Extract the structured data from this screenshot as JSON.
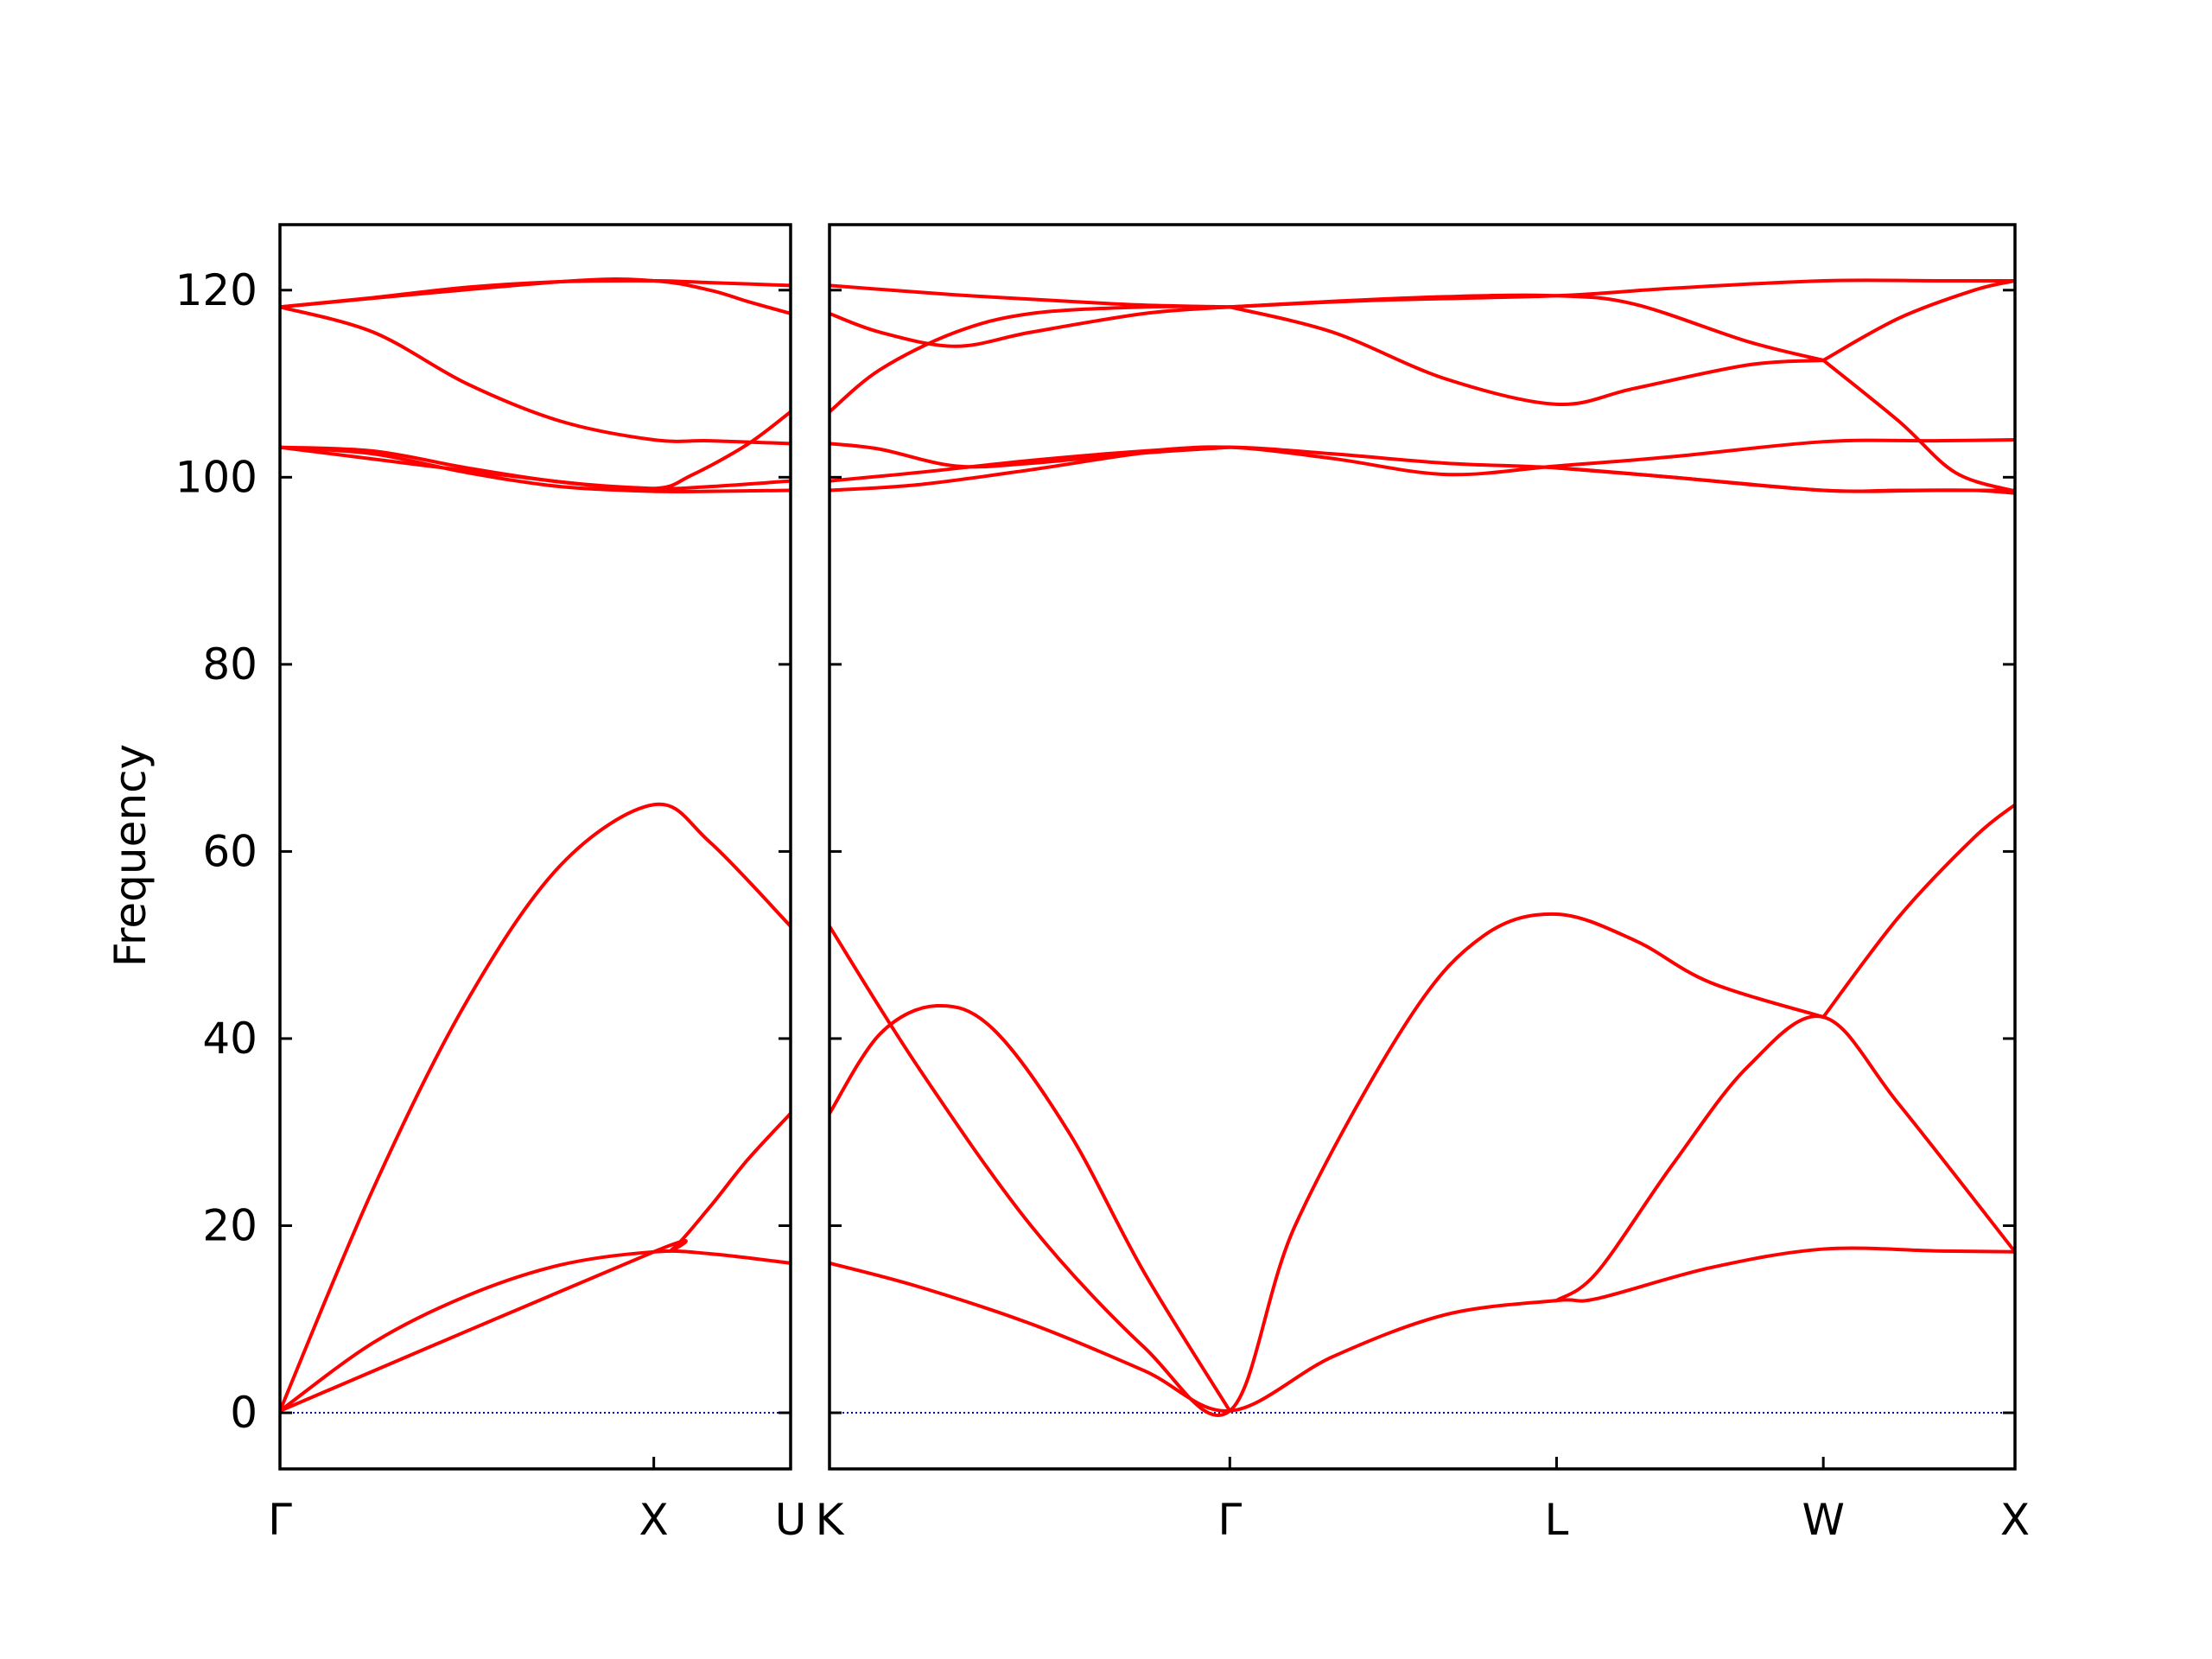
{
  "chart_data": {
    "type": "line",
    "title": "",
    "ylabel": "Frequency",
    "xlabel": "",
    "ylim": [
      -6,
      127
    ],
    "yticks": [
      0,
      20,
      40,
      60,
      80,
      100,
      120
    ],
    "grid": false,
    "legend": "none",
    "line_color": "#ff0000",
    "zero_line_color": "#0000aa",
    "segments": [
      {
        "name": "Γ-X-U",
        "x_range": [
          0,
          1.366
        ],
        "high_symmetry_points": [
          {
            "label": "Γ",
            "x": 0
          },
          {
            "label": "X",
            "x": 1.0
          },
          {
            "label": "U",
            "x": 1.366
          }
        ],
        "bands": [
          {
            "x": [
              0,
              0.25,
              0.5,
              0.75,
              1.0,
              1.15,
              1.366
            ],
            "y": [
              0.2,
              7.5,
              12.5,
              15.8,
              17.2,
              17.0,
              16.0
            ]
          },
          {
            "x": [
              0,
              0.25,
              0.5,
              0.75,
              1.0,
              1.15,
              1.366
            ],
            "y": [
              0.2,
              24.0,
              44.0,
              58.5,
              65.0,
              61.0,
              52.0
            ]
          },
          {
            "x": [
              0,
              1.0,
              1.05,
              1.15,
              1.25,
              1.366
            ],
            "y": [
              0.2,
              17.2,
              17.5,
              22.0,
              27.0,
              32.0
            ]
          },
          {
            "x": [
              0,
              0.25,
              0.5,
              0.75,
              1.0,
              1.15,
              1.366
            ],
            "y": [
              103.2,
              102.5,
              100.5,
              99.0,
              98.5,
              98.5,
              98.6
            ]
          },
          {
            "x": [
              0,
              0.25,
              0.5,
              0.75,
              1.0,
              1.15,
              1.366
            ],
            "y": [
              103.2,
              102.8,
              101.0,
              99.5,
              98.8,
              99.0,
              99.6
            ]
          },
          {
            "x": [
              0,
              0.75,
              1.0,
              1.1,
              1.25,
              1.366
            ],
            "y": [
              103.2,
              99.5,
              98.8,
              100.2,
              103.5,
              107.0
            ]
          },
          {
            "x": [
              0,
              0.25,
              0.5,
              0.75,
              1.0,
              1.15,
              1.366
            ],
            "y": [
              118.2,
              115.5,
              110.0,
              106.0,
              104.0,
              103.9,
              103.6
            ]
          },
          {
            "x": [
              0,
              0.25,
              0.5,
              0.75,
              1.0,
              1.15,
              1.366
            ],
            "y": [
              118.2,
              119.2,
              120.3,
              120.9,
              121.0,
              120.8,
              120.5
            ]
          },
          {
            "x": [
              0,
              0.75,
              1.0,
              1.15,
              1.25,
              1.366
            ],
            "y": [
              118.2,
              120.9,
              121.0,
              120.0,
              118.8,
              117.5
            ]
          }
        ]
      },
      {
        "name": "K-Γ-L-W-X",
        "x_range": [
          1.366,
          4.508
        ],
        "high_symmetry_points": [
          {
            "label": "K",
            "x": 1.366
          },
          {
            "label": "Γ",
            "x": 2.427
          },
          {
            "label": "L",
            "x": 3.293
          },
          {
            "label": "W",
            "x": 4.0
          },
          {
            "label": "X",
            "x": 4.508
          }
        ],
        "bands": [
          {
            "x": [
              1.366,
              1.6,
              1.9,
              2.2,
              2.427,
              2.7,
              3.0,
              3.293,
              3.4,
              3.7,
              4.0,
              4.3,
              4.508
            ],
            "y": [
              16.0,
              13.5,
              9.5,
              4.5,
              0.2,
              6.0,
              10.5,
              12.0,
              12.2,
              15.5,
              17.5,
              17.3,
              17.2
            ]
          },
          {
            "x": [
              1.366,
              1.6,
              1.9,
              2.2,
              2.427,
              2.6,
              2.9,
              3.1,
              3.293,
              3.5,
              3.7,
              4.0
            ],
            "y": [
              52.0,
              37.0,
              20.0,
              7.0,
              0.2,
              20.0,
              42.0,
              51.0,
              53.3,
              50.5,
              46.0,
              42.3
            ]
          },
          {
            "x": [
              1.366,
              1.5,
              1.65,
              1.8,
              2.0,
              2.2,
              2.427
            ],
            "y": [
              32.0,
              40.5,
              43.5,
              41.0,
              30.0,
              15.0,
              0.2
            ]
          },
          {
            "x": [
              3.293,
              3.4,
              3.6,
              3.8,
              4.0,
              4.2,
              4.508
            ],
            "y": [
              12.0,
              15.0,
              26.5,
              37.0,
              42.3,
              33.0,
              17.2
            ]
          },
          {
            "x": [
              4.0,
              4.2,
              4.4,
              4.508
            ],
            "y": [
              42.3,
              53.0,
              61.5,
              65.0
            ]
          },
          {
            "x": [
              1.366,
              1.6,
              1.9,
              2.2,
              2.427,
              2.7,
              3.0,
              3.293,
              3.6,
              4.0,
              4.3,
              4.508
            ],
            "y": [
              98.6,
              99.2,
              100.8,
              102.6,
              103.2,
              102.5,
              101.5,
              101.0,
              100.0,
              98.6,
              98.6,
              98.6
            ]
          },
          {
            "x": [
              1.366,
              1.6,
              1.9,
              2.2,
              2.427,
              2.7,
              3.0,
              3.293,
              3.6,
              4.0,
              4.3,
              4.508
            ],
            "y": [
              99.6,
              100.5,
              101.8,
              102.8,
              103.2,
              102.0,
              100.3,
              101.2,
              102.2,
              103.8,
              103.9,
              104.0
            ]
          },
          {
            "x": [
              1.366,
              1.5,
              1.7,
              1.9,
              2.2,
              2.427
            ],
            "y": [
              103.6,
              103.0,
              101.2,
              101.5,
              102.6,
              103.2
            ]
          },
          {
            "x": [
              3.293,
              3.6,
              4.0,
              4.2,
              4.4,
              4.508
            ],
            "y": [
              101.0,
              100.0,
              98.6,
              98.6,
              98.6,
              98.3
            ]
          },
          {
            "x": [
              1.366,
              1.5,
              1.7,
              1.9,
              2.2,
              2.427
            ],
            "y": [
              107.0,
              111.5,
              115.5,
              117.5,
              118.2,
              118.2
            ]
          },
          {
            "x": [
              1.366,
              1.5,
              1.7,
              1.9,
              2.2,
              2.427
            ],
            "y": [
              117.5,
              115.5,
              114.0,
              115.5,
              117.5,
              118.2
            ]
          },
          {
            "x": [
              1.366,
              1.7,
              2.0,
              2.2,
              2.427
            ],
            "y": [
              120.5,
              119.5,
              118.8,
              118.4,
              118.2
            ]
          },
          {
            "x": [
              2.427,
              2.7,
              3.0,
              3.293,
              3.5,
              3.8,
              4.0
            ],
            "y": [
              118.2,
              115.5,
              110.5,
              107.8,
              109.5,
              112.0,
              112.5
            ]
          },
          {
            "x": [
              2.427,
              2.7,
              3.0,
              3.293,
              3.5,
              3.8,
              4.0
            ],
            "y": [
              118.2,
              118.8,
              119.3,
              119.4,
              118.5,
              114.5,
              112.5
            ]
          },
          {
            "x": [
              2.427,
              2.8,
              3.293,
              3.6,
              4.0,
              4.3,
              4.508
            ],
            "y": [
              118.2,
              118.9,
              119.4,
              120.2,
              121.0,
              121.0,
              121.0
            ]
          },
          {
            "x": [
              4.0,
              4.2,
              4.4,
              4.508
            ],
            "y": [
              112.5,
              117.0,
              120.0,
              121.0
            ]
          },
          {
            "x": [
              4.0,
              4.2,
              4.35,
              4.508
            ],
            "y": [
              112.5,
              106.0,
              100.5,
              98.5
            ]
          }
        ]
      }
    ]
  }
}
